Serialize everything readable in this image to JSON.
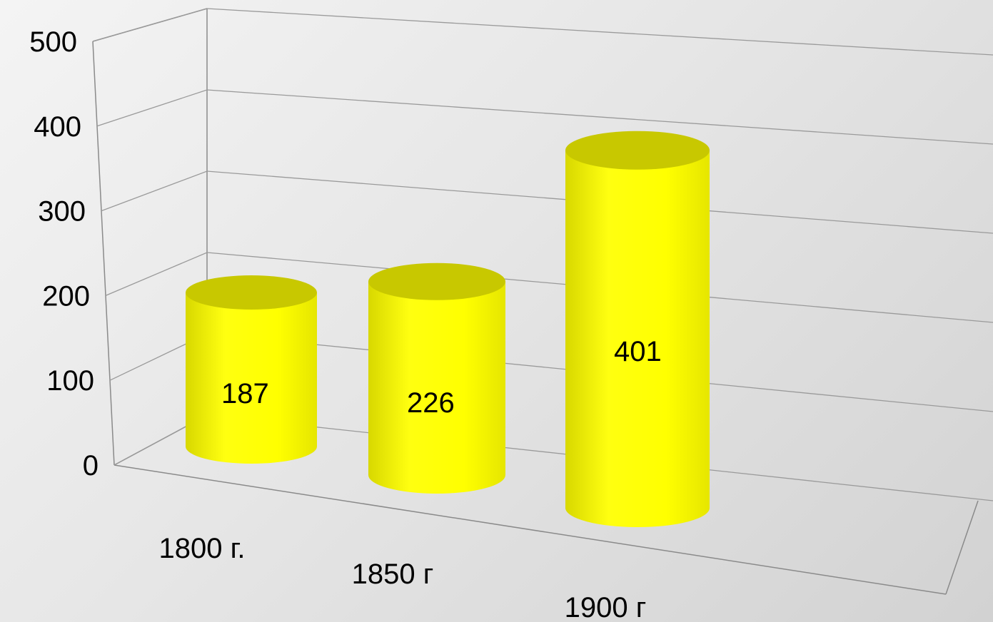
{
  "chart_data": {
    "type": "bar",
    "style": "3d-cylinder",
    "categories": [
      "1800 г.",
      "1850 г",
      "1900 г"
    ],
    "values": [
      187,
      226,
      401
    ],
    "data_labels": [
      "187",
      "226",
      "401"
    ],
    "y_ticks": [
      "0",
      "100",
      "200",
      "300",
      "400",
      "500"
    ],
    "ylim": [
      0,
      500
    ],
    "grid": true,
    "legend": "none",
    "bar_color": "#ffff00",
    "bar_shade_color": "#c8c800"
  }
}
